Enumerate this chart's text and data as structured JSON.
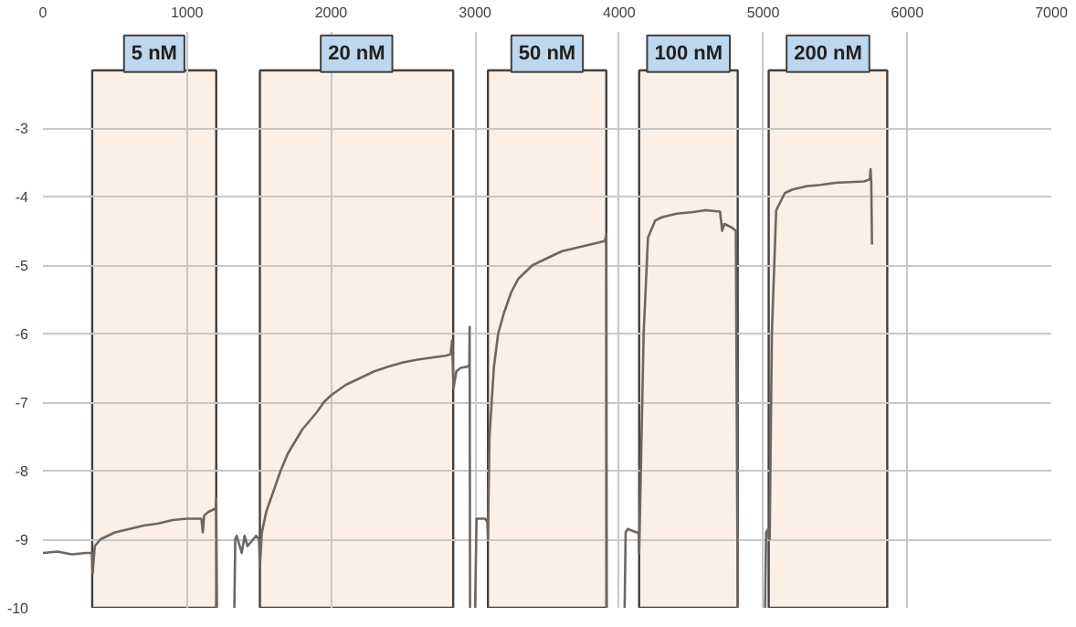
{
  "chart_data": {
    "type": "line",
    "xlim": [
      0,
      7000
    ],
    "ylim": [
      -10,
      -3
    ],
    "xticks": [
      0,
      1000,
      2000,
      3000,
      4000,
      5000,
      6000,
      7000
    ],
    "yticks": [
      -3,
      -4,
      -5,
      -6,
      -7,
      -8,
      -9,
      -10
    ],
    "grid": true,
    "series": [
      {
        "color": "#6e6660",
        "x": [
          0,
          100,
          200,
          300,
          340,
          345,
          360,
          400,
          500,
          600,
          700,
          800,
          900,
          1000,
          1100,
          1110,
          1120,
          1150,
          1200,
          1203,
          1208,
          1250,
          1329,
          1335,
          1345,
          1380,
          1400,
          1420,
          1480,
          1500,
          1506,
          1520,
          1550,
          1600,
          1650,
          1700,
          1800,
          1900,
          1950,
          2000,
          2100,
          2200,
          2300,
          2400,
          2500,
          2600,
          2700,
          2800,
          2830,
          2840,
          2850,
          2870,
          2900,
          2950,
          2960,
          2962,
          2965,
          2980,
          3000,
          3010,
          3020,
          3070,
          3085,
          3089,
          3100,
          3130,
          3160,
          3200,
          3250,
          3300,
          3400,
          3500,
          3600,
          3700,
          3800,
          3900,
          3911,
          3914,
          3950,
          4038,
          4045,
          4060,
          4120,
          4135,
          4139,
          4170,
          4200,
          4250,
          4300,
          4400,
          4500,
          4600,
          4700,
          4715,
          4730,
          4780,
          4810,
          4823,
          4900,
          5013,
          5020,
          5035,
          5045,
          5060,
          5090,
          5150,
          5200,
          5300,
          5400,
          5500,
          5600,
          5700,
          5740,
          5745,
          5750,
          5755
        ],
        "values": [
          -9.2,
          -9.18,
          -9.22,
          -9.2,
          -9.2,
          -9.5,
          -9.1,
          -9.0,
          -8.9,
          -8.85,
          -8.8,
          -8.77,
          -8.72,
          -8.7,
          -8.7,
          -8.9,
          -8.65,
          -8.6,
          -8.55,
          -8.4,
          -10,
          null,
          -10,
          -9.0,
          -8.95,
          -9.2,
          -8.95,
          -9.1,
          -8.95,
          -9.0,
          -9.4,
          -8.9,
          -8.6,
          -8.3,
          -8.0,
          -7.75,
          -7.4,
          -7.15,
          -7.0,
          -6.9,
          -6.75,
          -6.65,
          -6.55,
          -6.48,
          -6.42,
          -6.38,
          -6.35,
          -6.32,
          -6.3,
          -6.1,
          -6.8,
          -6.55,
          -6.5,
          -6.48,
          -6.45,
          -5.9,
          -10,
          null,
          -10,
          -8.7,
          -8.7,
          -8.7,
          -8.75,
          -9.0,
          -7.5,
          -6.5,
          -6.0,
          -5.7,
          -5.4,
          -5.2,
          -5.0,
          -4.9,
          -4.8,
          -4.75,
          -4.7,
          -4.65,
          -4.55,
          -10,
          null,
          -10,
          -8.9,
          -8.85,
          -8.9,
          -8.9,
          -9.2,
          -6.0,
          -4.6,
          -4.35,
          -4.3,
          -4.25,
          -4.23,
          -4.2,
          -4.22,
          -4.5,
          -4.4,
          -4.45,
          -4.5,
          -10,
          null,
          -10,
          -8.9,
          -8.85,
          -9.0,
          -6.0,
          -4.2,
          -3.95,
          -3.9,
          -3.85,
          -3.83,
          -3.8,
          -3.79,
          -3.78,
          -3.75,
          -3.6,
          -3.8,
          -4.7
        ]
      }
    ],
    "bands": [
      {
        "axis": "x",
        "from": 342,
        "to": 1203,
        "label": "5 nM",
        "color": "#fcefe6"
      },
      {
        "axis": "x",
        "from": 1506,
        "to": 2848,
        "label": "20 nM",
        "color": "#fcefe6"
      },
      {
        "axis": "x",
        "from": 3089,
        "to": 3911,
        "label": "50 nM",
        "color": "#fcefe6"
      },
      {
        "axis": "x",
        "from": 4139,
        "to": 4823,
        "label": "100 nM",
        "color": "#fcefe6"
      },
      {
        "axis": "x",
        "from": 5038,
        "to": 5861,
        "label": "200 nM",
        "color": "#fcefe6"
      }
    ]
  }
}
